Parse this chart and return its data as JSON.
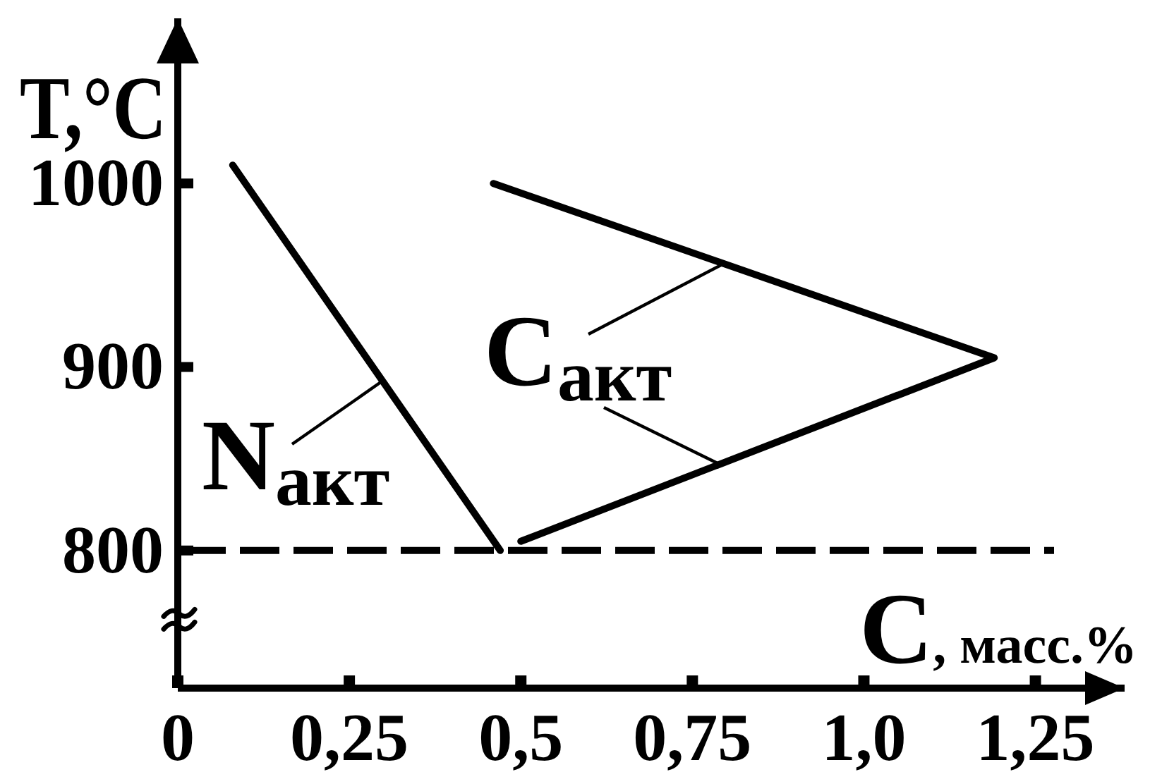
{
  "chart_data": {
    "type": "line",
    "xlabel": "C, масс.%",
    "ylabel": "T,°C",
    "xlim": [
      0,
      1.38
    ],
    "xticks": [
      0,
      {
        "value": 0.25,
        "label": "0,25"
      },
      {
        "value": 0.5,
        "label": "0,5"
      },
      {
        "value": 0.75,
        "label": "0,75"
      },
      {
        "value": 1,
        "label": "1,0"
      },
      {
        "value": 1.25,
        "label": "1,25"
      }
    ],
    "ylim": [
      725,
      1090
    ],
    "yticks": [
      800,
      900,
      1000
    ],
    "series": [
      {
        "name": "N$_{акт}$",
        "color": "#000000",
        "x": [
          0.08,
          0.47
        ],
        "values": [
          1010,
          800
        ]
      },
      {
        "name": "C$_{акт}$",
        "color": "#000000",
        "x": [
          0.5,
          1.19,
          0.46
        ],
        "values": [
          805,
          905,
          1000
        ]
      }
    ],
    "ref_lines": [
      {
        "axis": "y",
        "value": 800,
        "color": "#000000",
        "line_style": "dashed"
      }
    ]
  }
}
